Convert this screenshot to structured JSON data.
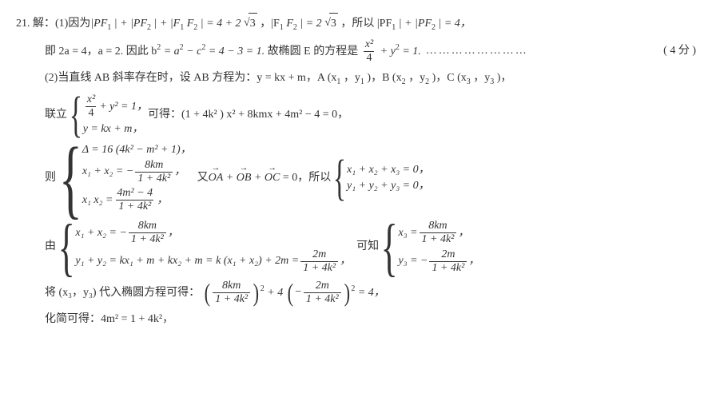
{
  "qnum": "21.",
  "label_sol": "解：",
  "line1_a": "(1)因为",
  "line1_b": "|PF",
  "line1_c": "| + |PF",
  "line1_d": "| + |F",
  "line1_e": "F",
  "line1_f": "| = 4 + 2",
  "line1_g": "3",
  "line1_h": "，|F",
  "line1_i": "F",
  "line1_j": "| = 2",
  "line1_k": "3",
  "line1_l": "，所以 |PF",
  "line1_m": "| + |PF",
  "line1_n": "| = 4，",
  "line2_a": "即 2a = 4，a = 2. 因此 b",
  "line2_b": " = a",
  "line2_c": " − c",
  "line2_d": " = 4 − 3 = 1. ",
  "line2_e": "故椭圆 E 的方程是",
  "line2_fracn": "x²",
  "line2_fracd": "4",
  "line2_f": " + y",
  "line2_g": " = 1.",
  "line2_dots": "……………………",
  "line2_score": "( 4 分 )",
  "line3_a": "(2)当直线 AB 斜率存在时，设 AB 方程为：y = kx + m，A (x",
  "line3_b": "，y",
  "line3_c": ")，B (x",
  "line3_d": "，y",
  "line3_e": ")，C (x",
  "line3_f": "，y",
  "line3_g": ")，",
  "line4_a": "联立",
  "sys1_r1_n": "x²",
  "sys1_r1_d": "4",
  "sys1_r1_t": " + y² = 1，",
  "sys1_r2": "y = kx + m，",
  "line4_b": "可得：(1 + 4k² ) x² + 8kmx + 4m² − 4 = 0，",
  "line5_a": "则",
  "sys2_r1": "Δ = 16 (4k² − m² + 1)，",
  "sys2_r2_a": "x₁ + x₂ = −",
  "sys2_r2_n": "8km",
  "sys2_r2_d": "1 + 4k²",
  "sys2_r2_b": "，",
  "sys2_r3_a": "x₁ x₂ = ",
  "sys2_r3_n": "4m² − 4",
  "sys2_r3_d": "1 + 4k²",
  "sys2_r3_b": "，",
  "line5_b": "又",
  "vec_oa": "OA",
  "vec_ob": "OB",
  "vec_oc": "OC",
  "line5_c": " + ",
  "line5_d": " = 0，所以",
  "sys3_r1": "x₁ + x₂ + x₃ = 0，",
  "sys3_r2": "y₁ + y₂ + y₃ = 0，",
  "line6_a": "由",
  "sys4_r1_a": "x₁ + x₂ = −",
  "sys4_r1_n": "8km",
  "sys4_r1_d": "1 + 4k²",
  "sys4_r1_b": "，",
  "sys4_r2_a": "y₁ + y₂ = kx₁ + m + kx₂ + m = k (x₁ + x₂) + 2m = ",
  "sys4_r2_n": "2m",
  "sys4_r2_d": "1 + 4k²",
  "sys4_r2_b": "，",
  "line6_b": "可知",
  "sys5_r1_a": "x₃ = ",
  "sys5_r1_n": "8km",
  "sys5_r1_d": "1 + 4k²",
  "sys5_r1_b": "，",
  "sys5_r2_a": "y₃ = −",
  "sys5_r2_n": "2m",
  "sys5_r2_d": "1 + 4k²",
  "sys5_r2_b": "，",
  "line7_a": "将 (x₃，y₃) 代入椭圆方程可得：",
  "line7_p1_n": "8km",
  "line7_p1_d": "1 + 4k²",
  "line7_b": " + 4",
  "line7_neg": "−",
  "line7_p2_n": "2m",
  "line7_p2_d": "1 + 4k²",
  "line7_c": " = 4，",
  "line8_a": "化简可得：4m² = 1 + 4k²，",
  "sup2": "2",
  "sub1": "1",
  "sub2": "2",
  "sub3": "3"
}
